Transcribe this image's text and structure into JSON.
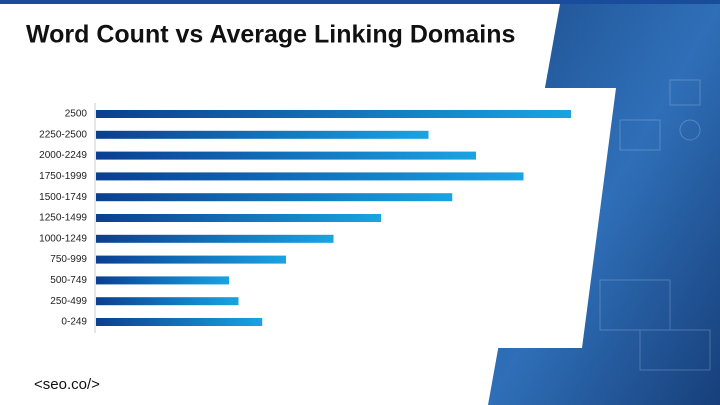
{
  "chart_data": {
    "type": "bar",
    "orientation": "horizontal",
    "title": "Word Count vs Average Linking Domains",
    "categories": [
      "2500",
      "2250-2500",
      "2000-2249",
      "1750-1999",
      "1500-1749",
      "1250-1499",
      "1000-1249",
      "750-999",
      "500-749",
      "250-499",
      "0-249"
    ],
    "values": [
      100,
      70,
      80,
      90,
      75,
      60,
      50,
      40,
      28,
      30,
      35
    ],
    "gradient": [
      "#0a3f91",
      "#1aa3e2"
    ]
  },
  "footer": "<seo.co/>"
}
